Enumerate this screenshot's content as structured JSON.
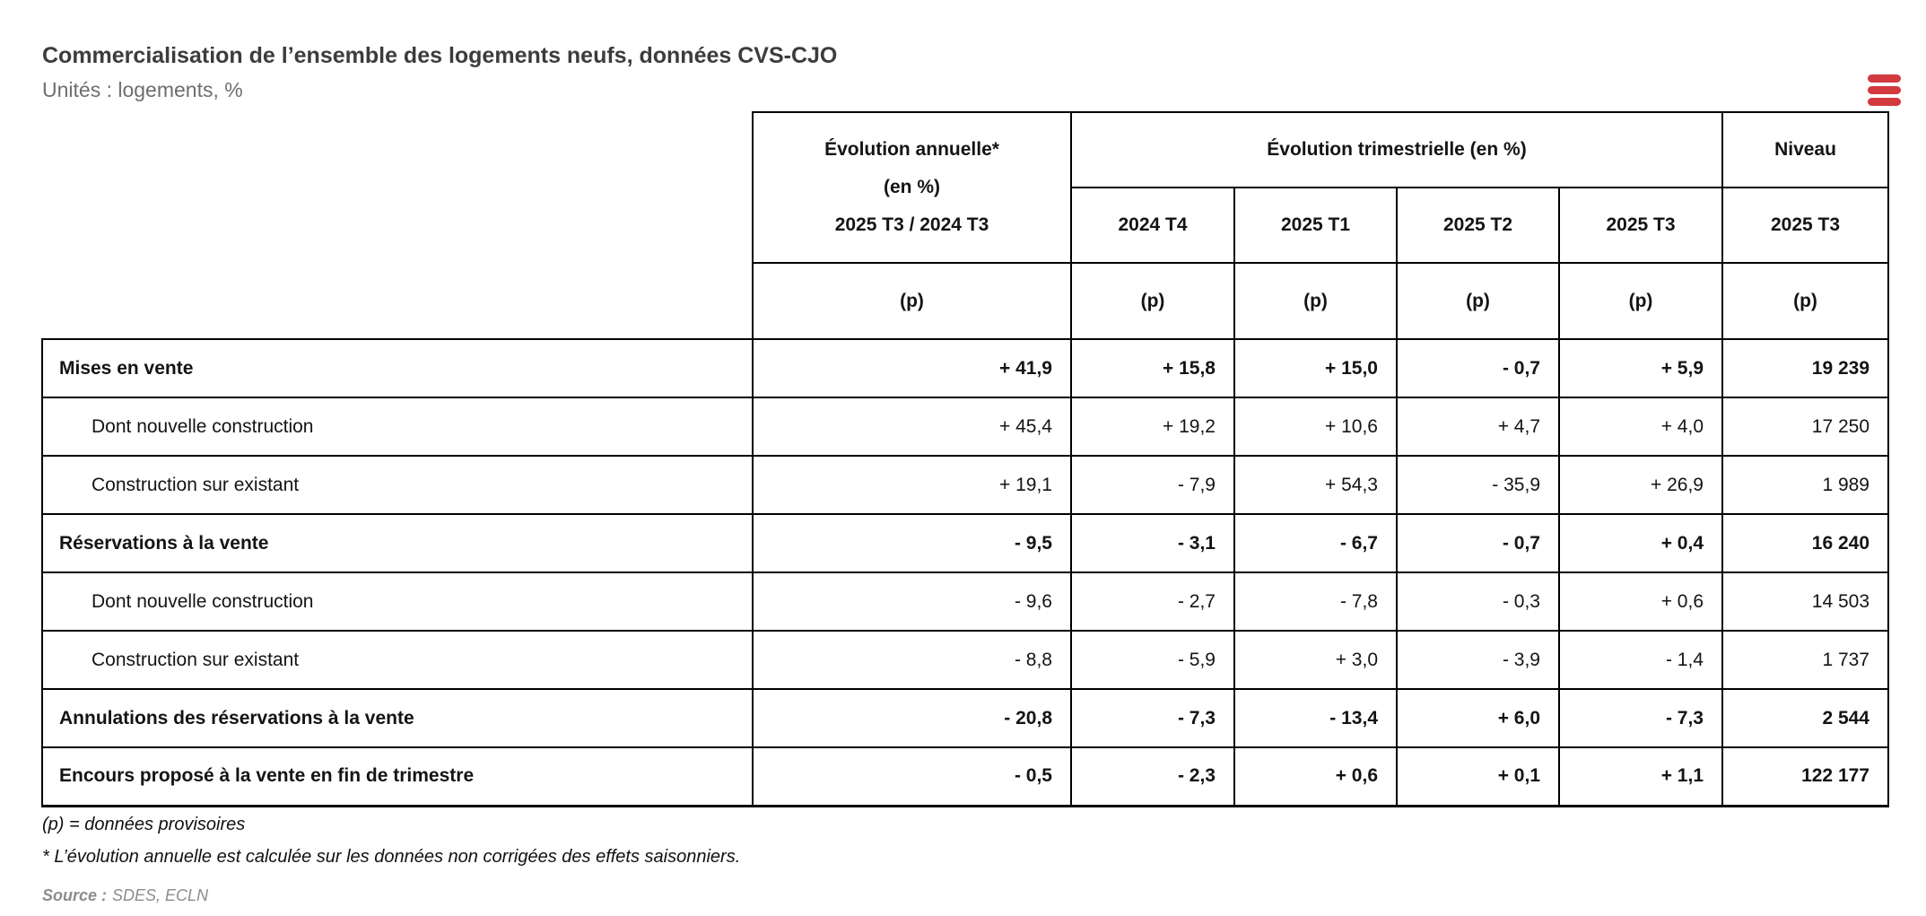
{
  "chart_data": {
    "type": "table",
    "title": "Commercialisation de l’ensemble des logements neufs, données CVS-CJO",
    "subtitle": "Unités : logements, %",
    "header": {
      "annual": {
        "line1": "Évolution annuelle*",
        "line2": "(en %)",
        "line3": "2025 T3 / 2024 T3"
      },
      "quarterly_group": "Évolution trimestrielle (en %)",
      "quarters": [
        "2024 T4",
        "2025 T1",
        "2025 T2",
        "2025 T3"
      ],
      "niveau": "Niveau",
      "niveau_quarter": "2025 T3"
    },
    "p_marker": "(p)",
    "rows": [
      {
        "type": "section",
        "label": "Mises en vente",
        "values": [
          "+ 41,9",
          "+ 15,8",
          "+ 15,0",
          "- 0,7",
          "+ 5,9",
          "19 239"
        ]
      },
      {
        "type": "sub",
        "label": "Dont nouvelle construction",
        "values": [
          "+ 45,4",
          "+ 19,2",
          "+ 10,6",
          "+ 4,7",
          "+ 4,0",
          "17 250"
        ]
      },
      {
        "type": "sub",
        "label": "Construction sur existant",
        "values": [
          "+ 19,1",
          "- 7,9",
          "+ 54,3",
          "- 35,9",
          "+ 26,9",
          "1 989"
        ]
      },
      {
        "type": "section",
        "label": "Réservations à la vente",
        "values": [
          "- 9,5",
          "- 3,1",
          "- 6,7",
          "- 0,7",
          "+ 0,4",
          "16 240"
        ]
      },
      {
        "type": "sub",
        "label": "Dont nouvelle construction",
        "values": [
          "- 9,6",
          "- 2,7",
          "- 7,8",
          "- 0,3",
          "+ 0,6",
          "14 503"
        ]
      },
      {
        "type": "sub",
        "label": "Construction sur existant",
        "values": [
          "- 8,8",
          "- 5,9",
          "+ 3,0",
          "- 3,9",
          "- 1,4",
          "1 737"
        ]
      },
      {
        "type": "section",
        "label": "Annulations des réservations à la vente",
        "values": [
          "- 20,8",
          "- 7,3",
          "- 13,4",
          "+ 6,0",
          "- 7,3",
          "2 544"
        ]
      },
      {
        "type": "section",
        "label": "Encours proposé à la vente en fin de trimestre",
        "values": [
          "- 0,5",
          "- 2,3",
          "+ 0,6",
          "+ 0,1",
          "+ 1,1",
          "122 177"
        ]
      }
    ]
  },
  "menu": {
    "icon_color": "#d23a3f"
  },
  "footnotes": [
    "(p) = données provisoires",
    "* L’évolution annuelle est calculée sur les données non corrigées des effets saisonniers."
  ],
  "source": {
    "label": "Source :",
    "value": "SDES, ECLN"
  }
}
